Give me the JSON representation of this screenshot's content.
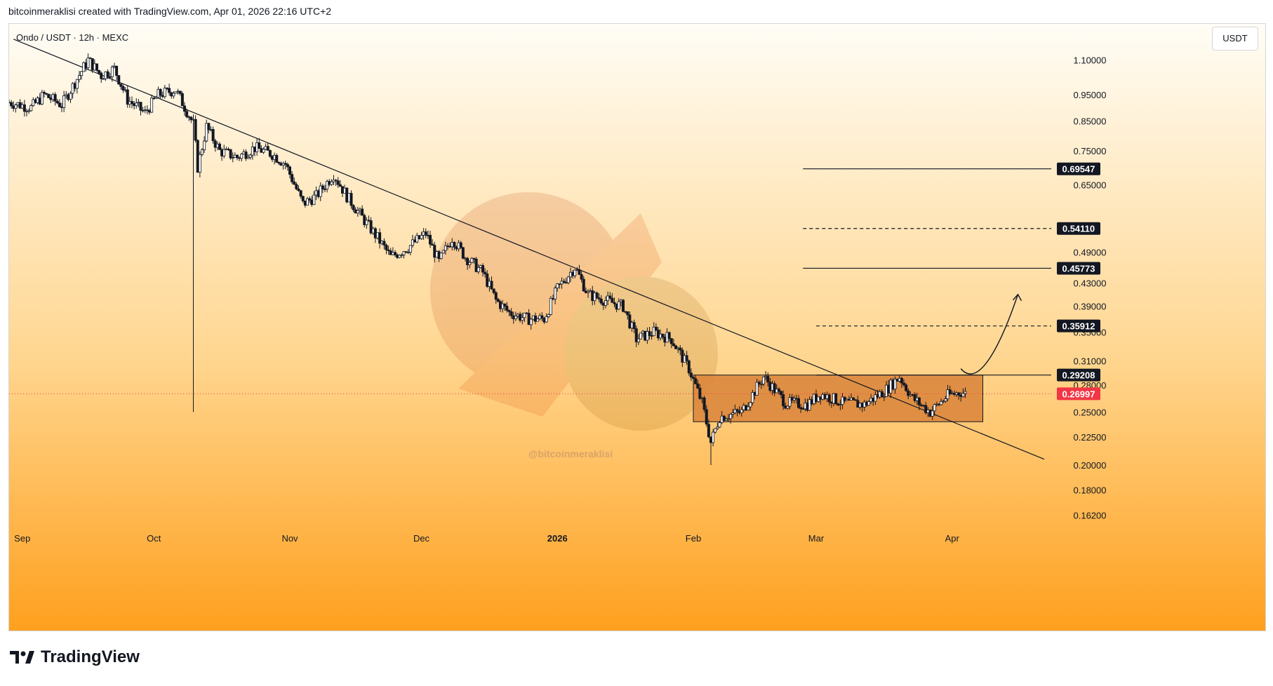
{
  "header": {
    "attribution": "bitcoinmeraklisi created with TradingView.com, Apr 01, 2026 22:16 UTC+2"
  },
  "chart": {
    "symbol_line": "Ondo / USDT · 12h · MEXC",
    "currency": "USDT",
    "watermark": "@bitcoinmeraklisi",
    "colors": {
      "bg_top": "#fffdf6",
      "bg_mid": "#ffd690",
      "bg_bottom": "#ffa01e",
      "up": "#000000",
      "down": "#000000",
      "box_fill": "#d9843a",
      "last_price": "#f23645"
    }
  },
  "footer": {
    "brand": "TradingView"
  },
  "chart_data": {
    "type": "candlestick",
    "scale": "log",
    "ylim": [
      0.145,
      1.25
    ],
    "y_ticks": [
      "1.10000",
      "0.95000",
      "0.85000",
      "0.75000",
      "0.65000",
      "0.49000",
      "0.43000",
      "0.39000",
      "0.35000",
      "0.31000",
      "0.28000",
      "0.25000",
      "0.22500",
      "0.20000",
      "0.18000",
      "0.16200"
    ],
    "x_labels": [
      "Sep",
      "Oct",
      "Nov",
      "Dec",
      "2026",
      "Feb",
      "Mar",
      "Apr"
    ],
    "x_label_dates": [
      "2025-09-01",
      "2025-10-01",
      "2025-11-01",
      "2025-12-01",
      "2026-01-01",
      "2026-02-01",
      "2026-03-01",
      "2026-04-01"
    ],
    "x_range": [
      "2025-08-29",
      "2026-04-22"
    ],
    "price_series": [
      {
        "date": "2025-08-29",
        "close": 0.92
      },
      {
        "date": "2025-09-03",
        "close": 0.9
      },
      {
        "date": "2025-09-06",
        "close": 0.95
      },
      {
        "date": "2025-09-10",
        "close": 0.91
      },
      {
        "date": "2025-09-13",
        "close": 1.0
      },
      {
        "date": "2025-09-16",
        "close": 1.1
      },
      {
        "date": "2025-09-19",
        "close": 1.03
      },
      {
        "date": "2025-09-22",
        "close": 1.06
      },
      {
        "date": "2025-09-25",
        "close": 0.93
      },
      {
        "date": "2025-09-29",
        "close": 0.88
      },
      {
        "date": "2025-10-02",
        "close": 0.95
      },
      {
        "date": "2025-10-06",
        "close": 0.97
      },
      {
        "date": "2025-10-10",
        "close": 0.84
      },
      {
        "date": "2025-10-11",
        "close": 0.7
      },
      {
        "date": "2025-10-13",
        "close": 0.83
      },
      {
        "date": "2025-10-16",
        "close": 0.75
      },
      {
        "date": "2025-10-20",
        "close": 0.73
      },
      {
        "date": "2025-10-24",
        "close": 0.76
      },
      {
        "date": "2025-10-28",
        "close": 0.74
      },
      {
        "date": "2025-10-31",
        "close": 0.71
      },
      {
        "date": "2025-11-04",
        "close": 0.6
      },
      {
        "date": "2025-11-07",
        "close": 0.62
      },
      {
        "date": "2025-11-11",
        "close": 0.68
      },
      {
        "date": "2025-11-14",
        "close": 0.62
      },
      {
        "date": "2025-11-18",
        "close": 0.56
      },
      {
        "date": "2025-11-21",
        "close": 0.52
      },
      {
        "date": "2025-11-24",
        "close": 0.48
      },
      {
        "date": "2025-11-28",
        "close": 0.5
      },
      {
        "date": "2025-12-02",
        "close": 0.53
      },
      {
        "date": "2025-12-05",
        "close": 0.47
      },
      {
        "date": "2025-12-08",
        "close": 0.52
      },
      {
        "date": "2025-12-11",
        "close": 0.48
      },
      {
        "date": "2025-12-15",
        "close": 0.45
      },
      {
        "date": "2025-12-18",
        "close": 0.4
      },
      {
        "date": "2025-12-21",
        "close": 0.38
      },
      {
        "date": "2025-12-25",
        "close": 0.37
      },
      {
        "date": "2025-12-29",
        "close": 0.37
      },
      {
        "date": "2026-01-01",
        "close": 0.42
      },
      {
        "date": "2026-01-05",
        "close": 0.46
      },
      {
        "date": "2026-01-08",
        "close": 0.41
      },
      {
        "date": "2026-01-12",
        "close": 0.4
      },
      {
        "date": "2026-01-16",
        "close": 0.39
      },
      {
        "date": "2026-01-19",
        "close": 0.34
      },
      {
        "date": "2026-01-23",
        "close": 0.35
      },
      {
        "date": "2026-01-27",
        "close": 0.34
      },
      {
        "date": "2026-01-31",
        "close": 0.3
      },
      {
        "date": "2026-02-03",
        "close": 0.26
      },
      {
        "date": "2026-02-05",
        "close": 0.22
      },
      {
        "date": "2026-02-07",
        "close": 0.245
      },
      {
        "date": "2026-02-12",
        "close": 0.25
      },
      {
        "date": "2026-02-17",
        "close": 0.29
      },
      {
        "date": "2026-02-22",
        "close": 0.26
      },
      {
        "date": "2026-02-27",
        "close": 0.258
      },
      {
        "date": "2026-03-02",
        "close": 0.27
      },
      {
        "date": "2026-03-07",
        "close": 0.26
      },
      {
        "date": "2026-03-12",
        "close": 0.258
      },
      {
        "date": "2026-03-17",
        "close": 0.275
      },
      {
        "date": "2026-03-20",
        "close": 0.29
      },
      {
        "date": "2026-03-23",
        "close": 0.265
      },
      {
        "date": "2026-03-27",
        "close": 0.25
      },
      {
        "date": "2026-03-31",
        "close": 0.268
      },
      {
        "date": "2026-04-03",
        "close": 0.272
      },
      {
        "date": "2026-04-04",
        "close": 0.27
      }
    ],
    "spike_low": {
      "date": "2025-10-10",
      "value": 0.25
    },
    "feb_low": {
      "date": "2026-02-05",
      "value": 0.2
    },
    "trendline": {
      "from": {
        "date": "2025-08-30",
        "value": 1.2
      },
      "to": {
        "date": "2026-04-22",
        "value": 0.205
      }
    },
    "range_box": {
      "from": "2026-02-01",
      "to": "2026-04-08",
      "top": 0.29208,
      "bottom": 0.24
    },
    "levels": [
      {
        "label": "0.69547",
        "value": 0.69547,
        "style": "solid",
        "from": "2026-02-26"
      },
      {
        "label": "0.54110",
        "value": 0.5411,
        "style": "dashed",
        "from": "2026-02-26"
      },
      {
        "label": "0.45773",
        "value": 0.45773,
        "style": "solid",
        "from": "2026-02-26"
      },
      {
        "label": "0.35912",
        "value": 0.35912,
        "style": "dashed",
        "from": "2026-03-01"
      },
      {
        "label": "0.29208",
        "value": 0.29208,
        "style": "solid",
        "from": "2026-03-01"
      }
    ],
    "last_price": {
      "label": "0.26997",
      "value": 0.26997
    },
    "projection_arrow": [
      {
        "date": "2026-04-03",
        "value": 0.3
      },
      {
        "date": "2026-04-07",
        "value": 0.29
      },
      {
        "date": "2026-04-12",
        "value": 0.33
      },
      {
        "date": "2026-04-16",
        "value": 0.41
      }
    ]
  }
}
